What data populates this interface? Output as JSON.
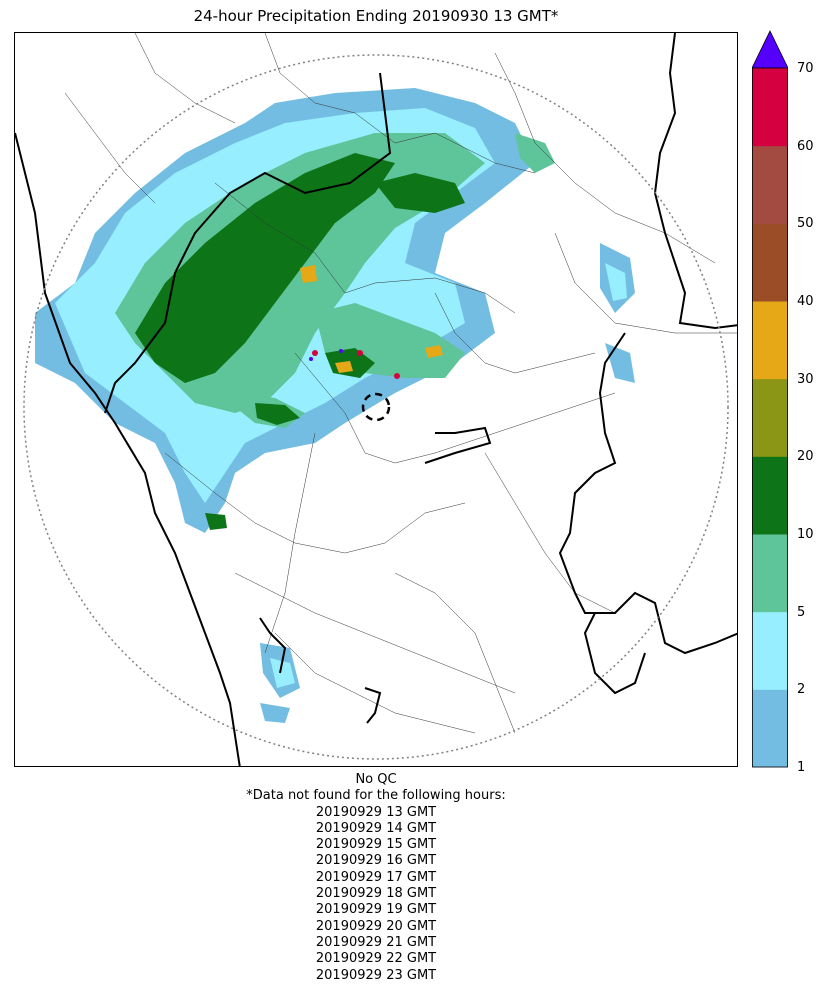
{
  "title": "24-hour Precipitation Ending 20190930 13 GMT*",
  "colorbar": {
    "ticks": [
      "1",
      "2",
      "5",
      "10",
      "20",
      "30",
      "40",
      "50",
      "60",
      "70"
    ],
    "colors": [
      "#74bde2",
      "#96eefe",
      "#5ec499",
      "#0e7418",
      "#8b9617",
      "#e7a818",
      "#9a4d26",
      "#a34a41",
      "#d4003f"
    ],
    "over_color": "#5500ff"
  },
  "notes": {
    "qc": "No QC",
    "missing_header": "*Data not found for the following hours:",
    "missing_hours": [
      "20190929 13 GMT",
      "20190929 14 GMT",
      "20190929 15 GMT",
      "20190929 16 GMT",
      "20190929 17 GMT",
      "20190929 18 GMT",
      "20190929 19 GMT",
      "20190929 20 GMT",
      "20190929 21 GMT",
      "20190929 22 GMT",
      "20190929 23 GMT"
    ]
  }
}
